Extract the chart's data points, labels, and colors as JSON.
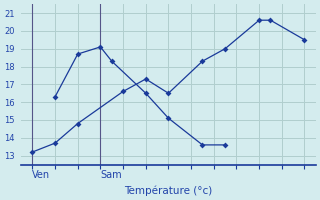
{
  "background_color": "#d4ecee",
  "grid_color": "#b0cece",
  "line_color": "#1a3a9a",
  "xlabel": "Température (°c)",
  "ylim": [
    12.5,
    21.5
  ],
  "yticks": [
    13,
    14,
    15,
    16,
    17,
    18,
    19,
    20,
    21
  ],
  "xlim": [
    -0.5,
    12.5
  ],
  "ven_x": 0,
  "sam_x": 3,
  "ven_label": "Ven",
  "sam_label": "Sam",
  "line1_x": [
    1,
    2,
    3,
    3.5,
    5,
    6,
    7.5,
    8.5
  ],
  "line1_y": [
    16.3,
    18.7,
    19.1,
    18.3,
    16.5,
    15.1,
    13.6,
    13.6
  ],
  "line2_x": [
    0,
    1,
    2,
    4,
    5,
    6,
    7.5,
    8.5,
    10,
    10.5,
    12
  ],
  "line2_y": [
    13.2,
    13.7,
    14.8,
    16.6,
    17.3,
    16.5,
    18.3,
    19.0,
    20.6,
    20.6,
    19.5
  ],
  "vline_ven": 0,
  "vline_sam": 3
}
